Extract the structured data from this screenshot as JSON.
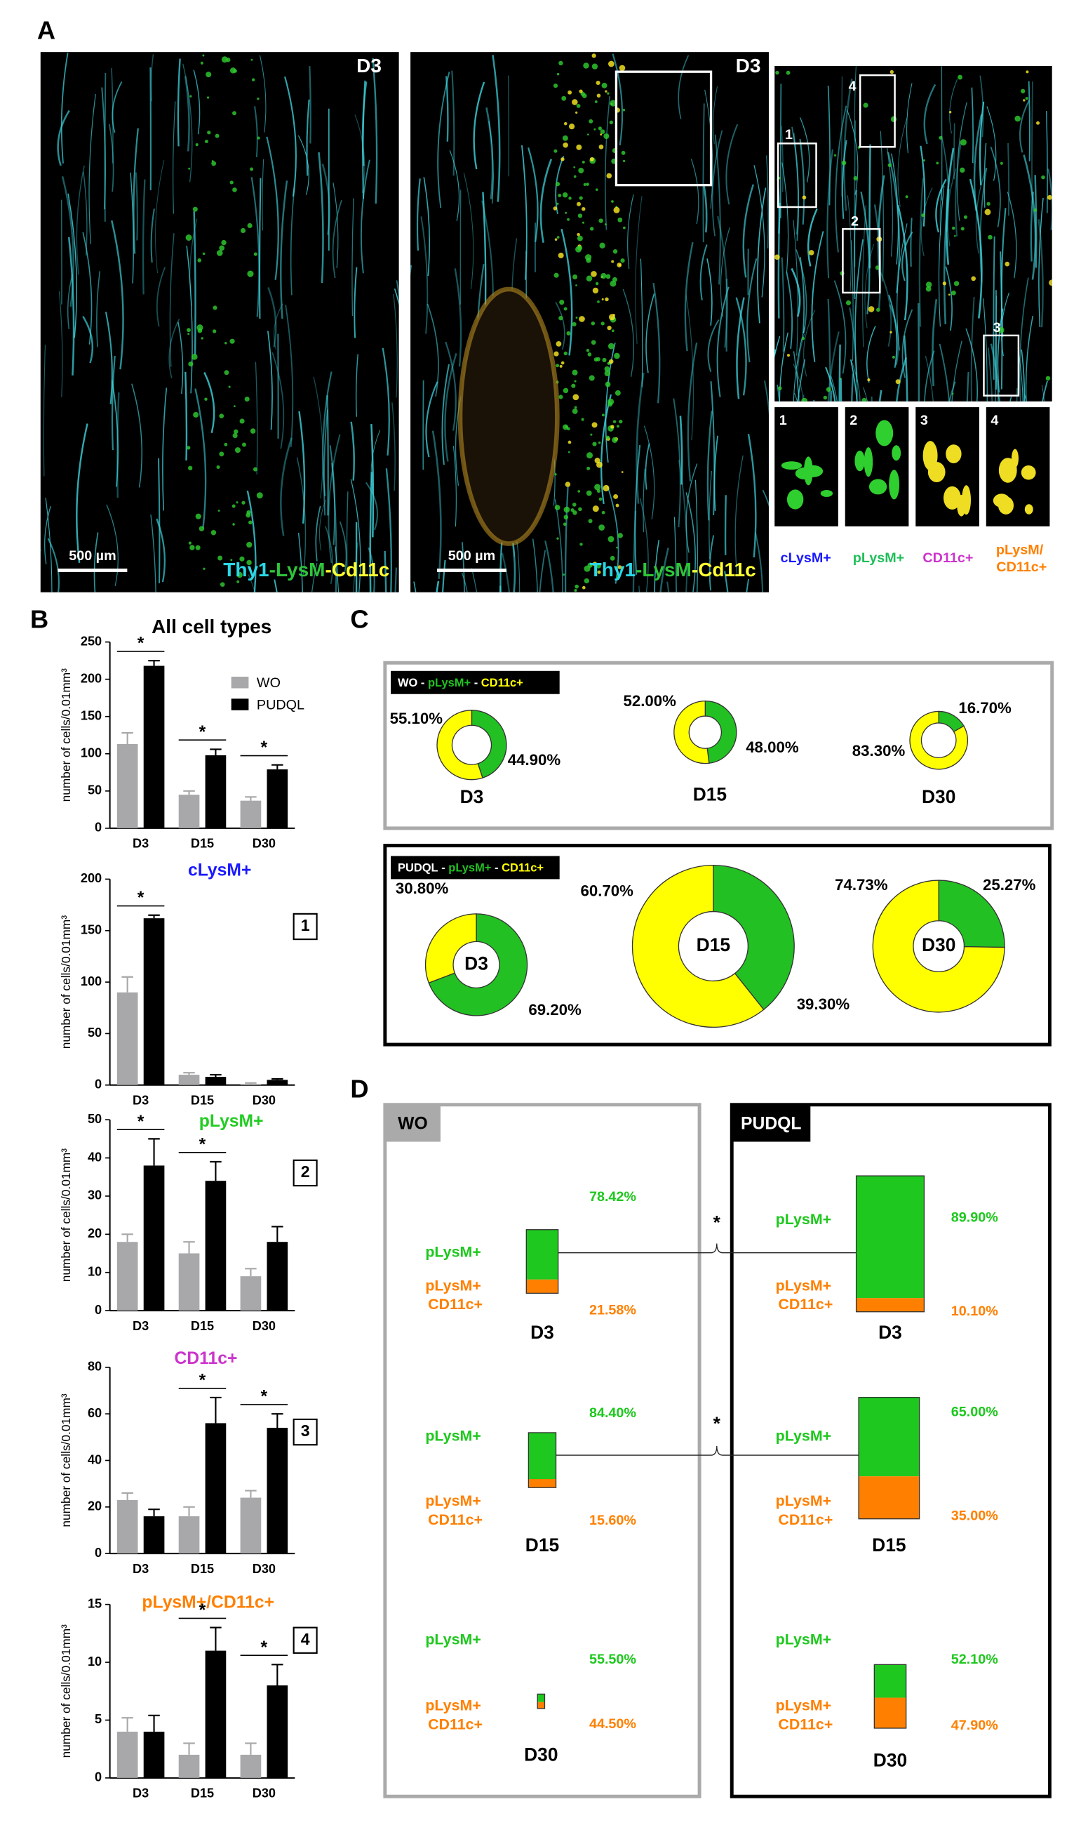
{
  "figure": {
    "panel_labels": [
      "A",
      "B",
      "C",
      "D"
    ]
  },
  "panel_a": {
    "labels": [
      "D3",
      "D3"
    ],
    "scale_bar": "500 µm",
    "stain": [
      {
        "text": "Thy1",
        "color": "#2ad8e6"
      },
      {
        "text": "-LysM",
        "color": "#2ec43a"
      },
      {
        "text": "-Cd11c",
        "color": "#ffff33"
      }
    ],
    "insets": [
      "1",
      "2",
      "3",
      "4"
    ],
    "cell_types": [
      {
        "text": "cLysM+",
        "color": "#1a1aff"
      },
      {
        "text": "pLysM+",
        "color": "#1fbf5a"
      },
      {
        "text": "CD11c+",
        "color": "#cc33cc"
      },
      {
        "text": "pLysM/ CD11c+",
        "color": "#ff8000"
      }
    ]
  },
  "panel_c": {
    "separator": " - ",
    "groups": [
      {
        "name": "WO",
        "legend": [
          {
            "name": "pLysM+",
            "color": "#22c022"
          },
          {
            "name": "CD11c+",
            "color": "#ffff00"
          }
        ]
      },
      {
        "name": "PUDQL",
        "legend": [
          {
            "name": "pLysM+",
            "color": "#22c022"
          },
          {
            "name": "CD11c+",
            "color": "#ffff00"
          }
        ]
      }
    ]
  },
  "panel_d": {
    "groups": [
      "WO",
      "PUDQL"
    ],
    "annotations": [
      "*",
      "*"
    ]
  },
  "chart_data": [
    {
      "type": "bar",
      "title": "All cell types",
      "title_color": "#000000",
      "y_label": "number of cells/0.01mm³",
      "categories": [
        "D3",
        "D15",
        "D30"
      ],
      "series": [
        {
          "name": "WO",
          "color": "#a8a8aa",
          "values": [
            113,
            45,
            37
          ],
          "errors": [
            15,
            5,
            5
          ]
        },
        {
          "name": "PUDQL",
          "color": "#000000",
          "values": [
            218,
            98,
            79
          ],
          "errors": [
            7,
            8,
            6
          ]
        }
      ],
      "ylim": [
        0,
        250
      ],
      "yticks": [
        0,
        50,
        100,
        150,
        200,
        250
      ],
      "legend": "upper right",
      "annotations": [
        {
          "text": "*",
          "category": "D3"
        },
        {
          "text": "*",
          "category": "D15"
        },
        {
          "text": "*",
          "category": "D30"
        }
      ]
    },
    {
      "type": "bar",
      "title": "cLysM+",
      "title_color": "#1a1aff",
      "panel": "1",
      "y_label": "number of cells/0.01mm³",
      "categories": [
        "D3",
        "D15",
        "D30"
      ],
      "series": [
        {
          "color": "#a8a8aa",
          "values": [
            90,
            10,
            1
          ],
          "errors": [
            15,
            2,
            1
          ]
        },
        {
          "color": "#000000",
          "values": [
            162,
            8,
            5
          ],
          "errors": [
            3,
            2,
            1
          ]
        }
      ],
      "ylim": [
        0,
        200
      ],
      "yticks": [
        0,
        50,
        100,
        150,
        200
      ],
      "annotations": [
        {
          "text": "*",
          "category": "D3"
        }
      ]
    },
    {
      "type": "bar",
      "title": "pLysM+",
      "title_color": "#22cc22",
      "panel": "2",
      "y_label": "number of cells/0.01mm³",
      "categories": [
        "D3",
        "D15",
        "D30"
      ],
      "series": [
        {
          "color": "#a8a8aa",
          "values": [
            18,
            15,
            9
          ],
          "errors": [
            2,
            3,
            2
          ]
        },
        {
          "color": "#000000",
          "values": [
            38,
            34,
            18
          ],
          "errors": [
            7,
            5,
            4
          ]
        }
      ],
      "ylim": [
        0,
        50
      ],
      "yticks": [
        0,
        10,
        20,
        30,
        40,
        50
      ],
      "annotations": [
        {
          "text": "*",
          "category": "D3"
        },
        {
          "text": "*",
          "category": "D15"
        }
      ]
    },
    {
      "type": "bar",
      "title": "CD11c+",
      "title_color": "#cc33cc",
      "panel": "3",
      "y_label": "number of cells/0.01mm³",
      "categories": [
        "D3",
        "D15",
        "D30"
      ],
      "series": [
        {
          "color": "#a8a8aa",
          "values": [
            23,
            16,
            24
          ],
          "errors": [
            3,
            4,
            3
          ]
        },
        {
          "color": "#000000",
          "values": [
            16,
            56,
            54
          ],
          "errors": [
            3,
            11,
            6
          ]
        }
      ],
      "ylim": [
        0,
        80
      ],
      "yticks": [
        0,
        20,
        40,
        60,
        80
      ],
      "annotations": [
        {
          "text": "*",
          "category": "D15"
        },
        {
          "text": "*",
          "category": "D30"
        }
      ]
    },
    {
      "type": "bar",
      "title": "pLysM+/CD11c+",
      "title_color": "#ff8000",
      "panel": "4",
      "y_label": "number of cells/0.01mm³",
      "categories": [
        "D3",
        "D15",
        "D30"
      ],
      "series": [
        {
          "color": "#a8a8aa",
          "values": [
            4,
            2,
            2
          ],
          "errors": [
            1.2,
            1,
            1
          ]
        },
        {
          "color": "#000000",
          "values": [
            4,
            11,
            8
          ],
          "errors": [
            1.4,
            2,
            1.8
          ]
        }
      ],
      "ylim": [
        0,
        15
      ],
      "yticks": [
        0,
        5,
        10,
        15
      ],
      "annotations": [
        {
          "text": "*",
          "category": "D15"
        },
        {
          "text": "*",
          "category": "D30"
        }
      ]
    },
    {
      "type": "donut",
      "title": "D3",
      "values": [
        44.9,
        55.1
      ],
      "value_labels": [
        "44.90%",
        "55.10%"
      ],
      "colors": [
        "#22c022",
        "#ffff00"
      ]
    },
    {
      "type": "donut",
      "title": "D15",
      "values": [
        48,
        52
      ],
      "value_labels": [
        "48.00%",
        "52.00%"
      ],
      "colors": [
        "#22c022",
        "#ffff00"
      ]
    },
    {
      "type": "donut",
      "title": "D30",
      "values": [
        16.7,
        83.3
      ],
      "value_labels": [
        "16.70%",
        "83.30%"
      ],
      "colors": [
        "#22c022",
        "#ffff00"
      ]
    },
    {
      "type": "donut",
      "title": "D3",
      "values": [
        69.2,
        30.8
      ],
      "value_labels": [
        "69.20%",
        "30.80%"
      ],
      "colors": [
        "#22c022",
        "#ffff00"
      ]
    },
    {
      "type": "donut",
      "title": "D15",
      "values": [
        39.3,
        60.7
      ],
      "value_labels": [
        "39.30%",
        "60.70%"
      ],
      "colors": [
        "#22c022",
        "#ffff00"
      ]
    },
    {
      "type": "donut",
      "title": "D30",
      "values": [
        25.27,
        74.73
      ],
      "value_labels": [
        "25.27%",
        "74.73%"
      ],
      "colors": [
        "#22c022",
        "#ffff00"
      ]
    },
    {
      "type": "stacked_bar",
      "title": "D3",
      "total": 22,
      "series": [
        {
          "name": "pLysM+",
          "color": "#1ec81e",
          "values": [
            78.42
          ],
          "value_labels": [
            "78.42%"
          ]
        },
        {
          "name": "pLysM+ CD11c+",
          "color": "#ff8000",
          "values": [
            21.58
          ],
          "value_labels": [
            "21.58%"
          ]
        }
      ]
    },
    {
      "type": "stacked_bar",
      "title": "D15",
      "total": 19,
      "series": [
        {
          "name": "pLysM+",
          "color": "#1ec81e",
          "values": [
            84.4
          ],
          "value_labels": [
            "84.40%"
          ]
        },
        {
          "name": "pLysM+ CD11c+",
          "color": "#ff8000",
          "values": [
            15.6
          ],
          "value_labels": [
            "15.60%"
          ]
        }
      ]
    },
    {
      "type": "stacked_bar",
      "title": "D30",
      "total": 5,
      "series": [
        {
          "name": "pLysM+",
          "color": "#1ec81e",
          "values": [
            55.5
          ],
          "value_labels": [
            "55.50%"
          ]
        },
        {
          "name": "pLysM+ CD11c+",
          "color": "#ff8000",
          "values": [
            44.5
          ],
          "value_labels": [
            "44.50%"
          ]
        }
      ]
    },
    {
      "type": "stacked_bar",
      "title": "D3",
      "total": 47,
      "series": [
        {
          "name": "pLysM+",
          "color": "#1ec81e",
          "values": [
            89.9
          ],
          "value_labels": [
            "89.90%"
          ]
        },
        {
          "name": "pLysM+ CD11c+",
          "color": "#ff8000",
          "values": [
            10.1
          ],
          "value_labels": [
            "10.10%"
          ]
        }
      ]
    },
    {
      "type": "stacked_bar",
      "title": "D15",
      "total": 42,
      "series": [
        {
          "name": "pLysM+",
          "color": "#1ec81e",
          "values": [
            65
          ],
          "value_labels": [
            "65.00%"
          ]
        },
        {
          "name": "pLysM+ CD11c+",
          "color": "#ff8000",
          "values": [
            35
          ],
          "value_labels": [
            "35.00%"
          ]
        }
      ]
    },
    {
      "type": "stacked_bar",
      "title": "D30",
      "total": 22,
      "series": [
        {
          "name": "pLysM+",
          "color": "#1ec81e",
          "values": [
            52.1
          ],
          "value_labels": [
            "52.10%"
          ]
        },
        {
          "name": "pLysM+ CD11c+",
          "color": "#ff8000",
          "values": [
            47.9
          ],
          "value_labels": [
            "47.90%"
          ]
        }
      ]
    }
  ]
}
